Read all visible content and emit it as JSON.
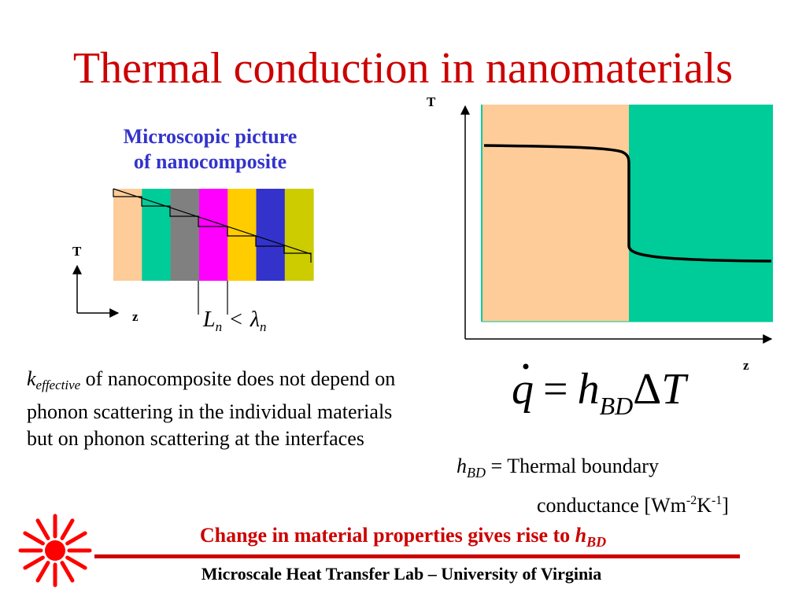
{
  "slide": {
    "title": "Thermal conduction in nanomaterials",
    "micro_caption_line1": "Microscopic picture",
    "micro_caption_line2": "of nanocomposite",
    "left_axis": {
      "y_label": "T",
      "x_label": "z"
    },
    "inequality": {
      "lhs": "L",
      "lhs_sub": "n",
      "op": "<",
      "rhs": "λ",
      "rhs_sub": "n"
    },
    "layers": [
      {
        "color": "#fdcc99"
      },
      {
        "color": "#00cc99"
      },
      {
        "color": "#808080"
      },
      {
        "color": "#ff00ff"
      },
      {
        "color": "#ffcc00"
      },
      {
        "color": "#3333cc"
      },
      {
        "color": "#cccc00"
      }
    ],
    "right_axis": {
      "y_label": "T",
      "x_label": "z"
    },
    "right_regions": [
      {
        "color": "#fdcc99"
      },
      {
        "color": "#00cc99"
      }
    ],
    "equation": {
      "lhs": "q",
      "op": "=",
      "h": "h",
      "h_sub": "BD",
      "delta": "Δ",
      "T": "T"
    },
    "body": {
      "k": "k",
      "k_sub": "effective",
      "text": " of nanocomposite does not depend on phonon scattering in the individual materials but on phonon scattering at the interfaces"
    },
    "hbd_def": {
      "h": "h",
      "h_sub": "BD",
      "eq_text": " = Thermal boundary",
      "line2_start": "conductance [Wm",
      "exp1": "-2",
      "mid": "K",
      "exp2": "-1",
      "end": "]"
    },
    "banner": {
      "text": "Change in material properties gives rise to ",
      "h": "h",
      "h_sub": "BD"
    },
    "footer": "Microscale Heat Transfer Lab – University of Virginia",
    "colors": {
      "title": "#cc0000",
      "caption": "#3333cc",
      "banner": "#cc0000",
      "logo": "#ff0000"
    }
  }
}
